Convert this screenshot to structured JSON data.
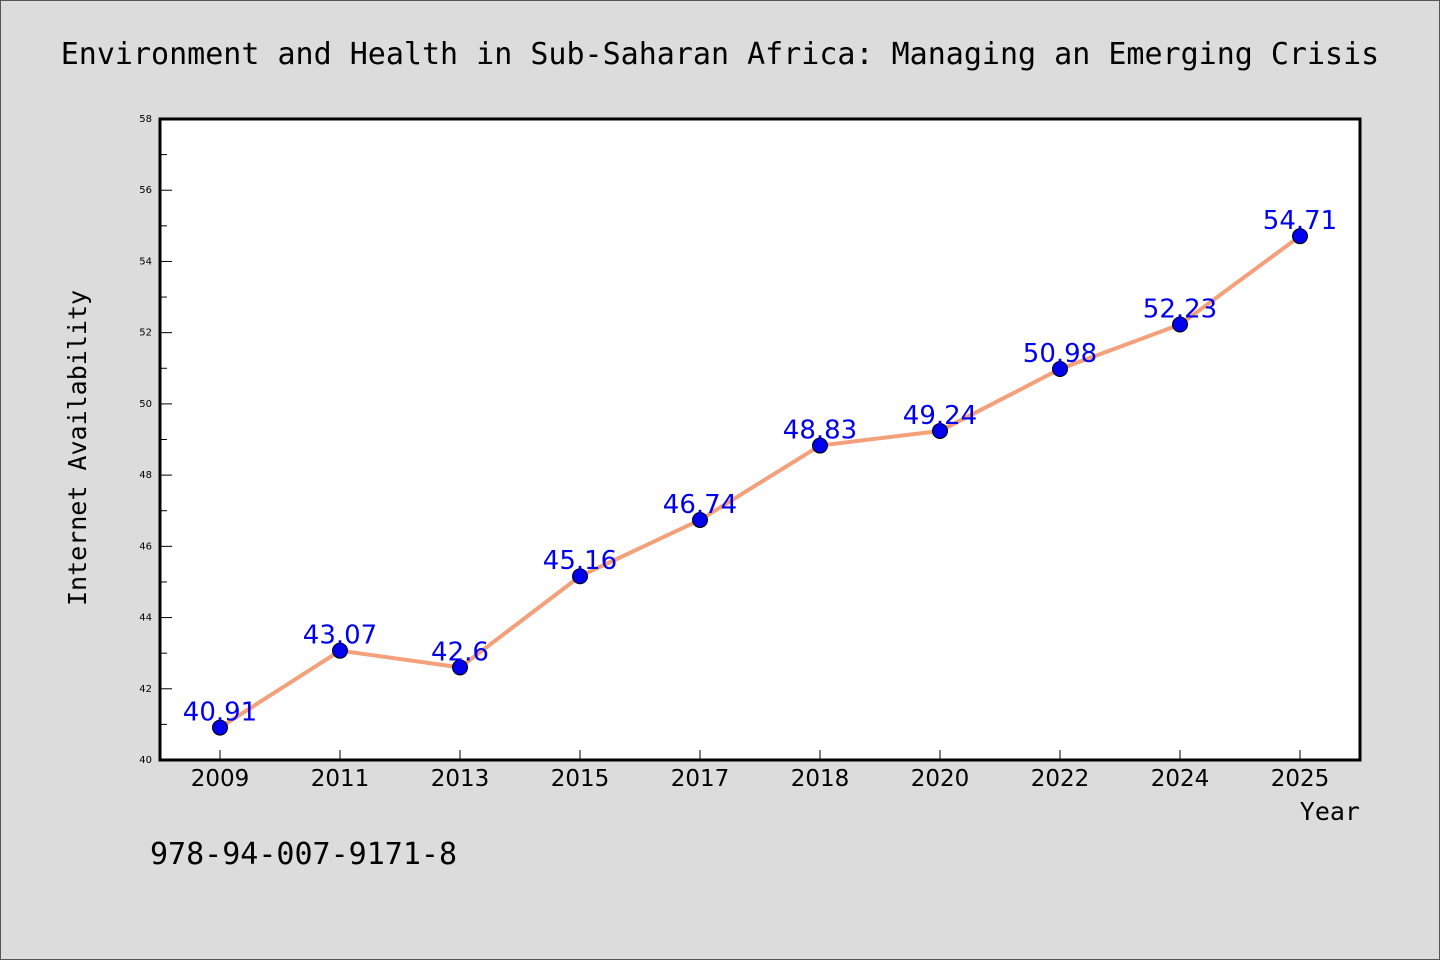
{
  "chart_data": {
    "type": "line",
    "title": "Environment and Health in Sub-Saharan Africa: Managing an Emerging Crisis",
    "xlabel": "Year",
    "ylabel": "Internet Availability",
    "categories": [
      "2009",
      "2011",
      "2013",
      "2015",
      "2017",
      "2018",
      "2020",
      "2022",
      "2024",
      "2025"
    ],
    "series": [
      {
        "values": [
          40.91,
          43.07,
          42.6,
          45.16,
          46.74,
          48.83,
          49.24,
          50.98,
          52.23,
          54.71
        ],
        "labels": [
          "40.91",
          "43.07",
          "42.6",
          "45.16",
          "46.74",
          "48.83",
          "49.24",
          "50.98",
          "52.23",
          "54.71"
        ]
      }
    ],
    "ylim": [
      40,
      58
    ],
    "yticks": [
      "40",
      "42",
      "44",
      "46",
      "48",
      "50",
      "52",
      "54",
      "56",
      "58"
    ],
    "grid": false,
    "line_color": "#f4a07a",
    "marker_color": "#0000ee",
    "label_color": "#0000ee",
    "plot_background": "#ffffff",
    "figure_background": "#dcdcdc"
  },
  "footer": {
    "isbn": "978-94-007-9171-8"
  }
}
